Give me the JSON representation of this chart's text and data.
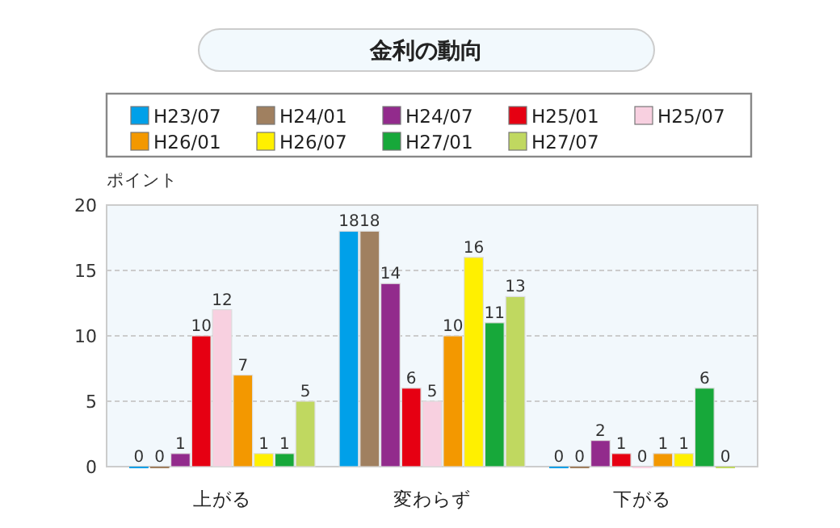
{
  "chart_data": {
    "type": "bar",
    "title": "金利の動向",
    "ylabel": "ポイント",
    "categories": [
      "上がる",
      "変わらず",
      "下がる"
    ],
    "series": [
      {
        "name": "H23/07",
        "color": "#00a0e9",
        "values": [
          0,
          18,
          0
        ]
      },
      {
        "name": "H24/01",
        "color": "#a08060",
        "values": [
          0,
          18,
          0
        ]
      },
      {
        "name": "H24/07",
        "color": "#922b8c",
        "values": [
          1,
          14,
          2
        ]
      },
      {
        "name": "H25/01",
        "color": "#e60012",
        "values": [
          10,
          6,
          1
        ]
      },
      {
        "name": "H25/07",
        "color": "#f8d0e0",
        "values": [
          12,
          5,
          0
        ]
      },
      {
        "name": "H26/01",
        "color": "#f39800",
        "values": [
          7,
          10,
          1
        ]
      },
      {
        "name": "H26/07",
        "color": "#fff000",
        "values": [
          1,
          16,
          1
        ]
      },
      {
        "name": "H27/01",
        "color": "#17a83a",
        "values": [
          1,
          11,
          6
        ]
      },
      {
        "name": "H27/07",
        "color": "#c0d860",
        "values": [
          5,
          13,
          0
        ]
      }
    ],
    "ylim": [
      0,
      20
    ],
    "yticks": [
      0,
      5,
      10,
      15,
      20
    ],
    "grid": "y",
    "legend": "top",
    "data_labels": true
  }
}
